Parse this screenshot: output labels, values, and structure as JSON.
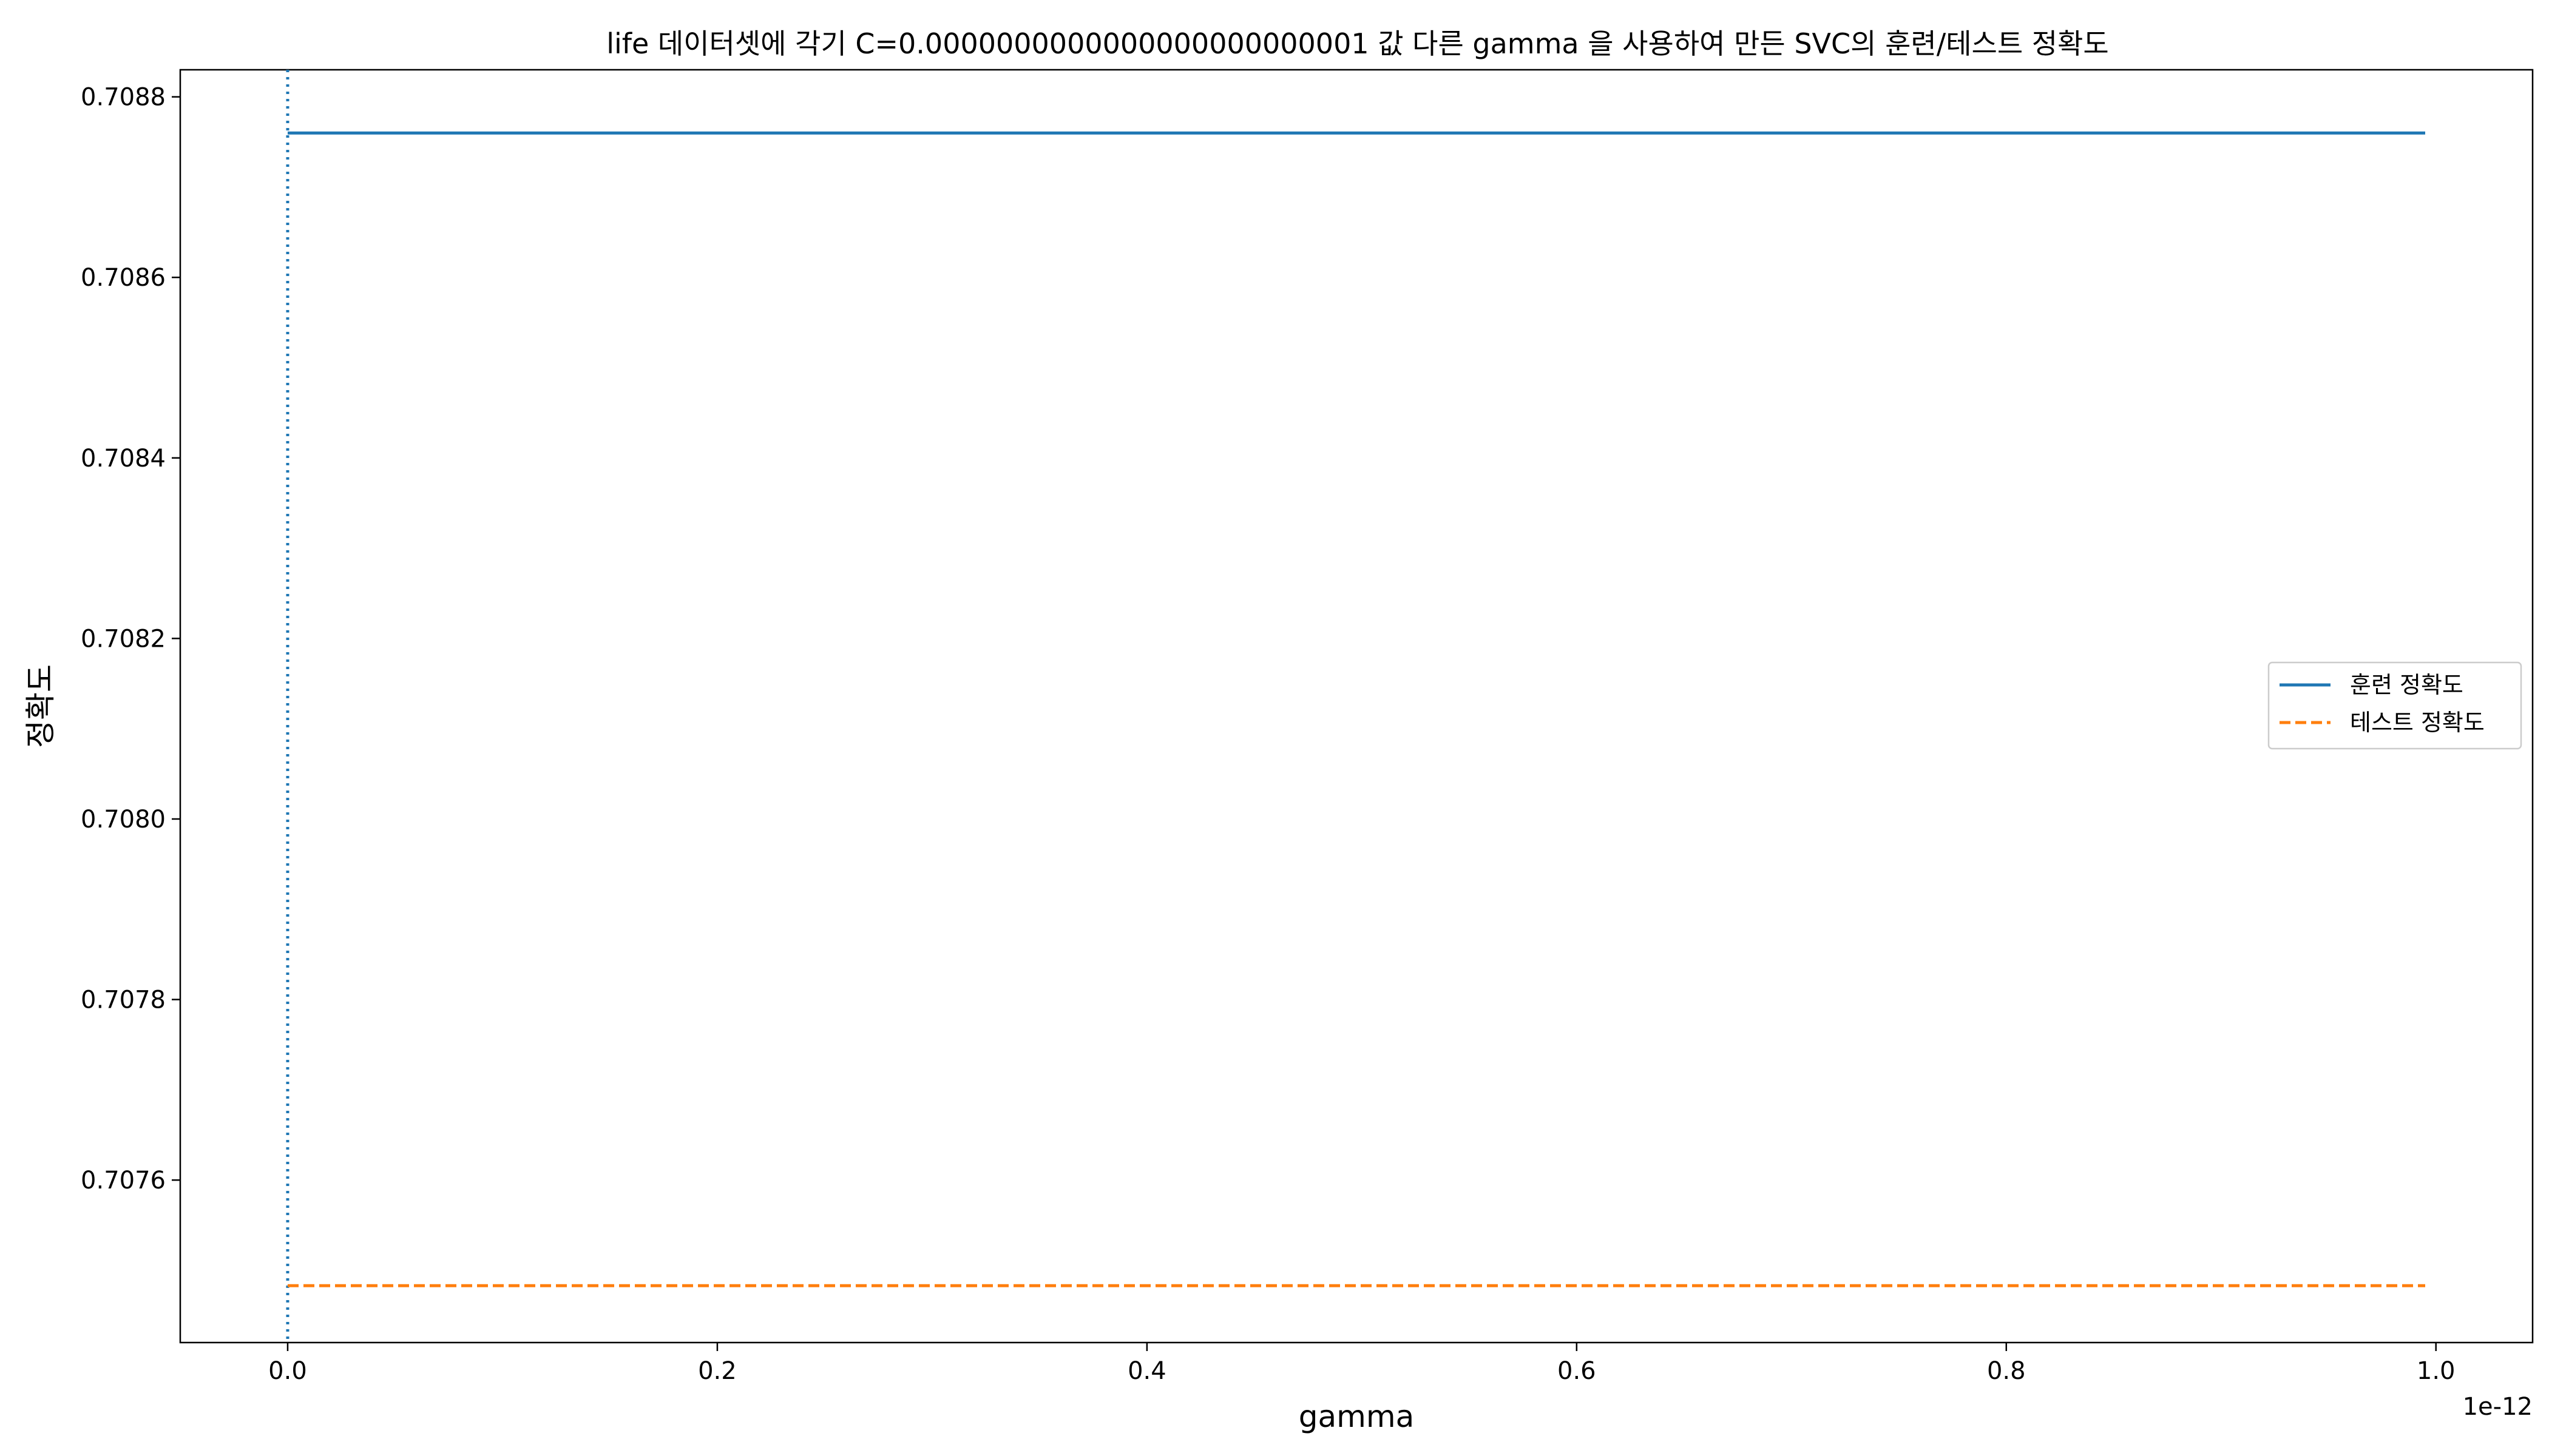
{
  "chart_data": {
    "type": "line",
    "title": "life 데이터셋에 각기 C=0.0000000000000000000000001 값 다른 gamma 을 사용하여 만든 SVC의 훈련/테스트 정확도",
    "xlabel": "gamma",
    "ylabel": "정확도",
    "x_offset_text": "1e-12",
    "xlim": [
      -0.05,
      1.045
    ],
    "ylim": [
      0.70742,
      0.70883
    ],
    "x_ticks": [
      0.0,
      0.2,
      0.4,
      0.6,
      0.8,
      1.0
    ],
    "x_tick_labels": [
      "0.0",
      "0.2",
      "0.4",
      "0.6",
      "0.8",
      "1.0"
    ],
    "y_ticks": [
      0.7076,
      0.7078,
      0.708,
      0.7082,
      0.7084,
      0.7086,
      0.7088
    ],
    "y_tick_labels": [
      "0.7076",
      "0.7078",
      "0.7080",
      "0.7082",
      "0.7084",
      "0.7086",
      "0.7088"
    ],
    "grid": false,
    "legend_position": "center-right",
    "series": [
      {
        "name": "훈련 정확도",
        "x": [
          0.0,
          0.995
        ],
        "y": [
          0.70876,
          0.70876
        ],
        "color": "#1f77b4",
        "style": "solid"
      },
      {
        "name": "테스트 정확도",
        "x": [
          0.0,
          0.995
        ],
        "y": [
          0.707483,
          0.707483
        ],
        "color": "#ff7f0e",
        "style": "dashed"
      }
    ],
    "vertical_line": {
      "x": 0.0,
      "color": "#1f77b4",
      "style": "dotted"
    }
  }
}
